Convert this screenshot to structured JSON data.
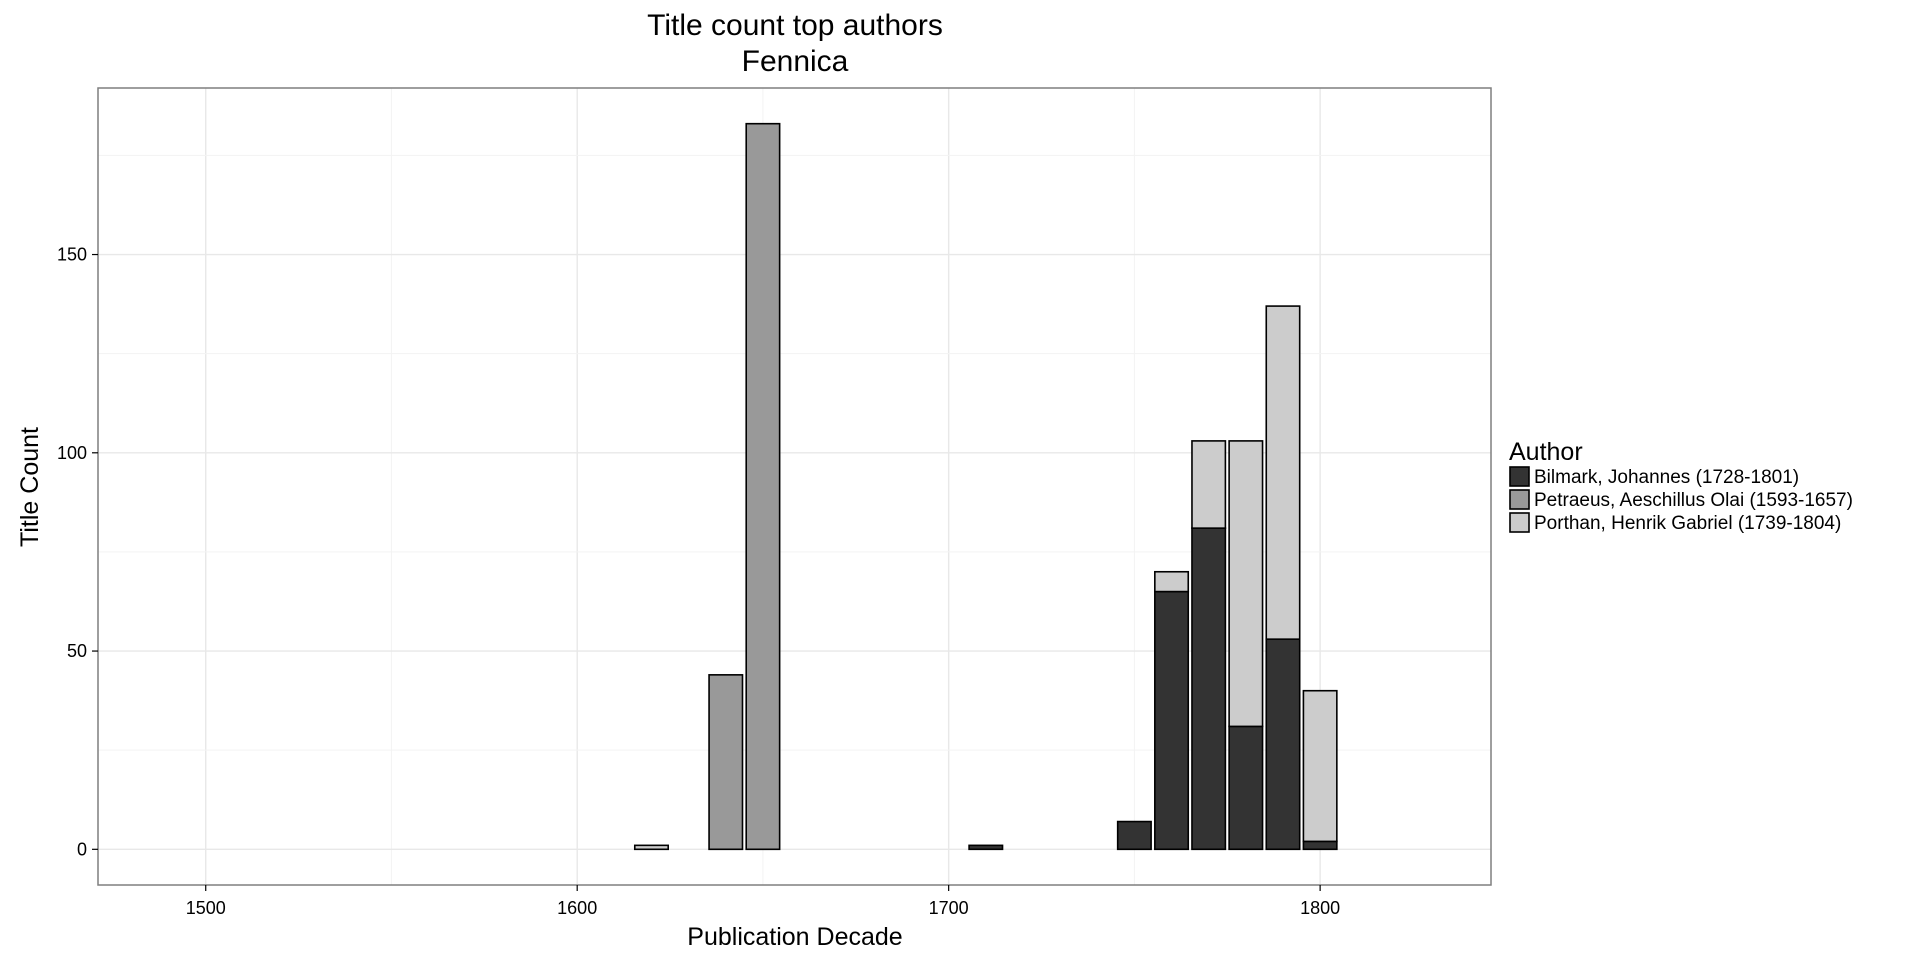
{
  "chart_data": {
    "type": "bar",
    "stacked": true,
    "title": [
      "Title count top authors",
      "Fennica"
    ],
    "xlabel": "Publication Decade",
    "ylabel": "Title Count",
    "xlim": [
      1471,
      1846
    ],
    "ylim": [
      -9,
      192
    ],
    "x_ticks": [
      1500,
      1600,
      1700,
      1800
    ],
    "y_ticks": [
      0,
      50,
      100,
      150
    ],
    "grid": true,
    "bar_width": 9,
    "legend": {
      "title": "Author",
      "position": "right",
      "entries": [
        "Bilmark, Johannes (1728-1801)",
        "Petraeus, Aeschillus Olai (1593-1657)",
        "Porthan, Henrik Gabriel (1739-1804)"
      ]
    },
    "categories": [
      1620,
      1640,
      1650,
      1710,
      1750,
      1760,
      1770,
      1780,
      1790,
      1800
    ],
    "series": [
      {
        "name": "Bilmark, Johannes (1728-1801)",
        "color": "#333333",
        "values": [
          0,
          0,
          0,
          1,
          7,
          65,
          81,
          31,
          53,
          2
        ]
      },
      {
        "name": "Petraeus, Aeschillus Olai (1593-1657)",
        "color": "#999999",
        "values": [
          0,
          44,
          183,
          0,
          0,
          0,
          0,
          0,
          0,
          0
        ]
      },
      {
        "name": "Porthan, Henrik Gabriel (1739-1804)",
        "color": "#cccccc",
        "values": [
          1,
          0,
          0,
          0,
          0,
          5,
          22,
          72,
          84,
          38
        ]
      }
    ]
  }
}
